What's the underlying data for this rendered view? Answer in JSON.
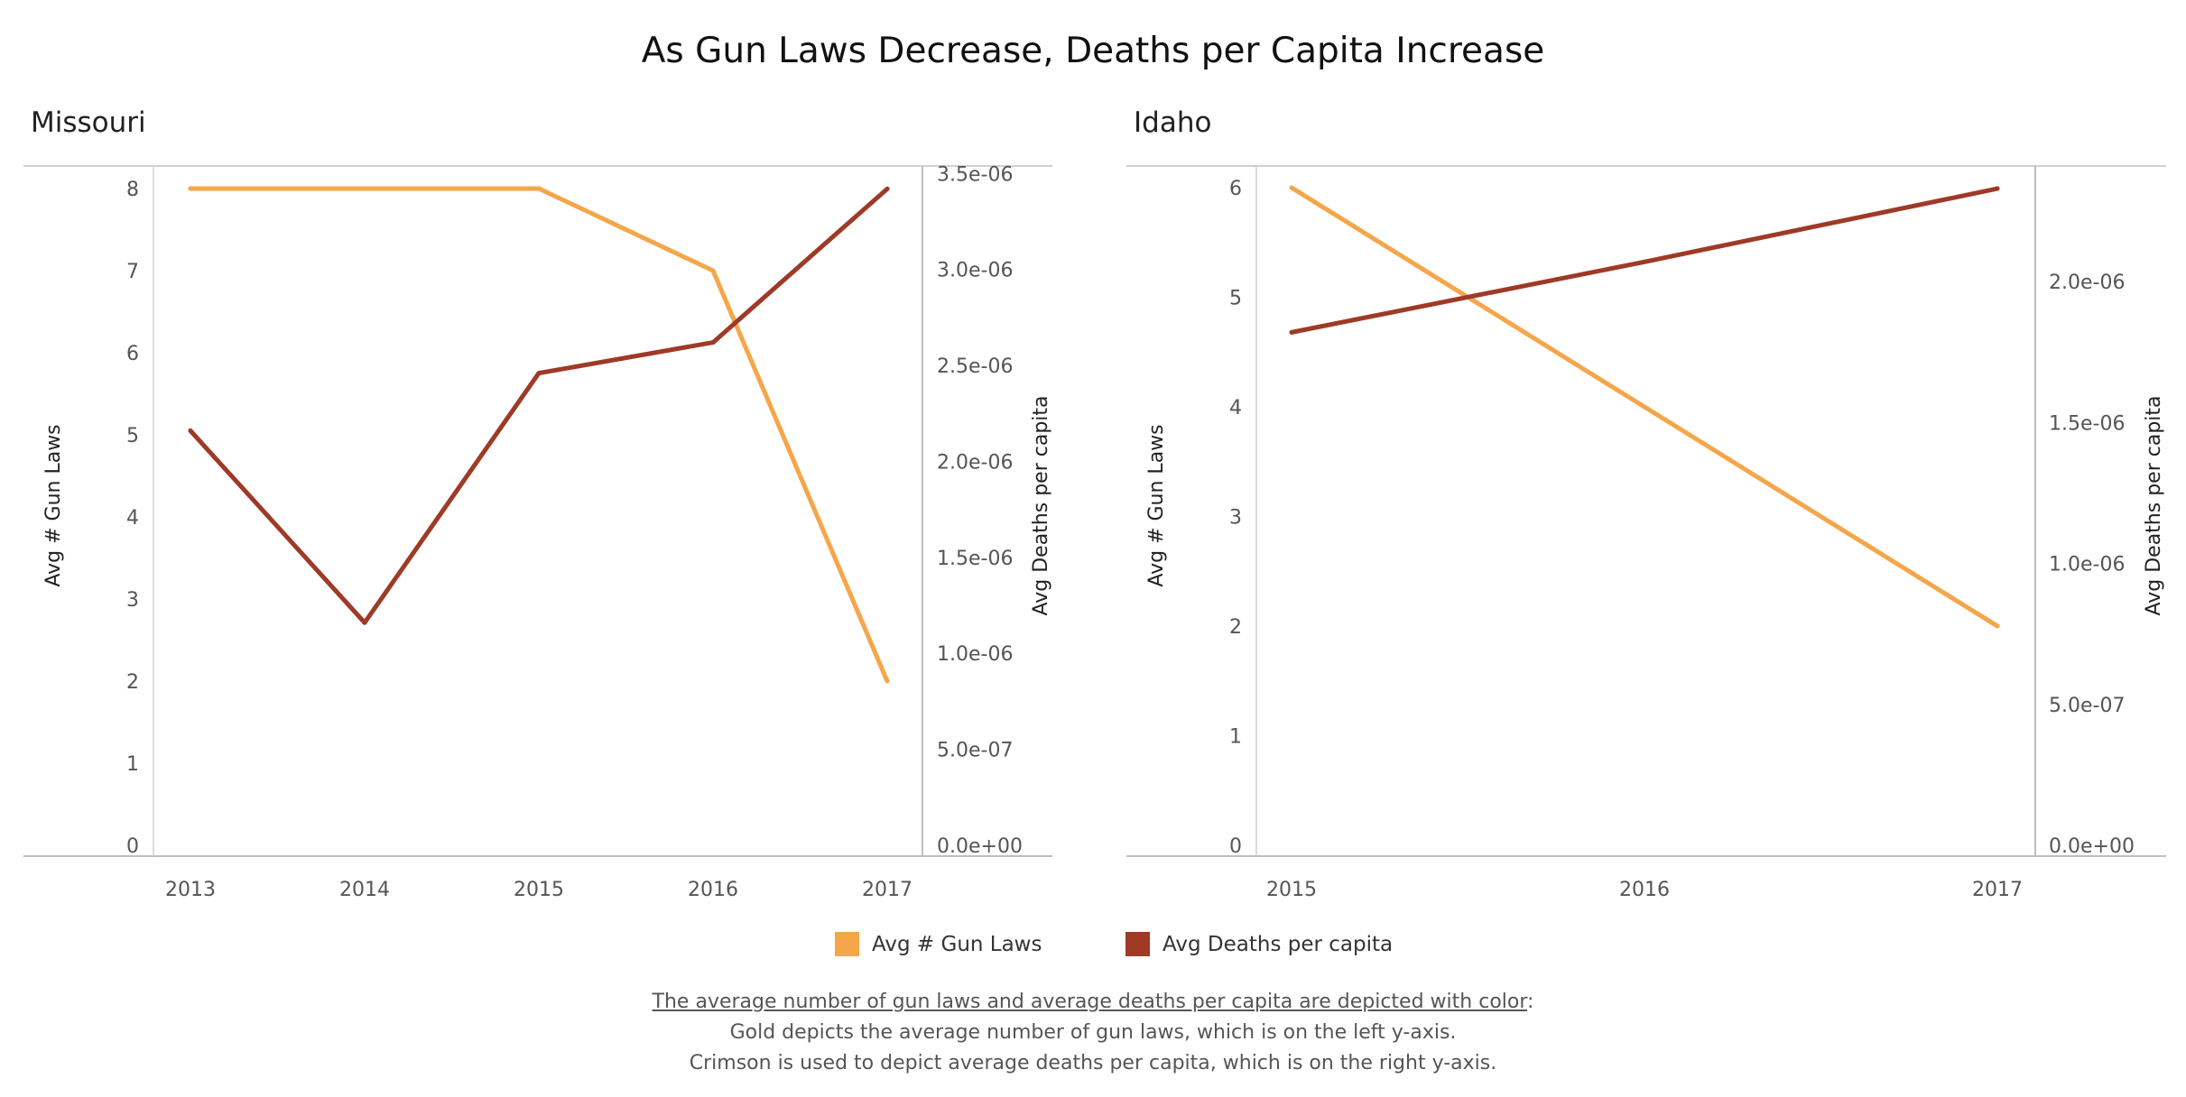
{
  "title": "As Gun Laws Decrease, Deaths per Capita Increase",
  "legend": {
    "gun_laws_label": "Avg # Gun Laws",
    "deaths_label": "Avg Deaths per capita"
  },
  "caption": {
    "heading": "The average number of gun laws  and average deaths per capita are depicted with color",
    "heading_suffix": ":",
    "line1": "Gold depicts the average number of gun laws, which is on the left y-axis.",
    "line2": "Crimson is used to depict average deaths per capita, which is on the right y-axis."
  },
  "colors": {
    "gold": "#F5A64A",
    "crimson": "#9E3A26",
    "gridline": "#d0d0d0",
    "axisline": "#bdbdbd"
  },
  "chart_data": [
    {
      "type": "line",
      "title": "Missouri",
      "x": [
        "2013",
        "2014",
        "2015",
        "2016",
        "2017"
      ],
      "series": [
        {
          "name": "Avg # Gun Laws",
          "axis": "left",
          "color": "#F5A64A",
          "values": [
            8,
            8,
            8,
            7,
            2
          ]
        },
        {
          "name": "Avg Deaths per capita",
          "axis": "right",
          "color": "#9E3A26",
          "values": [
            2.16e-06,
            1.16e-06,
            2.46e-06,
            2.62e-06,
            3.42e-06
          ]
        }
      ],
      "ylabel_left": "Avg # Gun Laws",
      "ylabel_right": "Avg Deaths per capita",
      "ylim_left": [
        0,
        8.3
      ],
      "ylim_right": [
        0,
        3.55e-06
      ],
      "yticks_left": [
        "0",
        "1",
        "2",
        "3",
        "4",
        "5",
        "6",
        "7",
        "8"
      ],
      "yticks_right": [
        "0.0e+00",
        "5.0e-07",
        "1.0e-06",
        "1.5e-06",
        "2.0e-06",
        "2.5e-06",
        "3.0e-06",
        "3.5e-06"
      ],
      "grid": false
    },
    {
      "type": "line",
      "title": "Idaho",
      "x": [
        "2015",
        "2016",
        "2017"
      ],
      "series": [
        {
          "name": "Avg # Gun Laws",
          "axis": "left",
          "color": "#F5A64A",
          "values": [
            6,
            4,
            2
          ]
        },
        {
          "name": "Avg Deaths per capita",
          "axis": "right",
          "color": "#9E3A26",
          "values": [
            1.82e-06,
            2.07e-06,
            2.33e-06
          ]
        }
      ],
      "ylabel_left": "Avg # Gun Laws",
      "ylabel_right": "Avg Deaths per capita",
      "ylim_left": [
        0,
        6.3
      ],
      "ylim_right": [
        0,
        2.45e-06
      ],
      "yticks_left": [
        "0",
        "1",
        "2",
        "3",
        "4",
        "5",
        "6"
      ],
      "yticks_right": [
        "0.0e+00",
        "5.0e-07",
        "1.0e-06",
        "1.5e-06",
        "2.0e-06"
      ],
      "grid": false
    }
  ]
}
